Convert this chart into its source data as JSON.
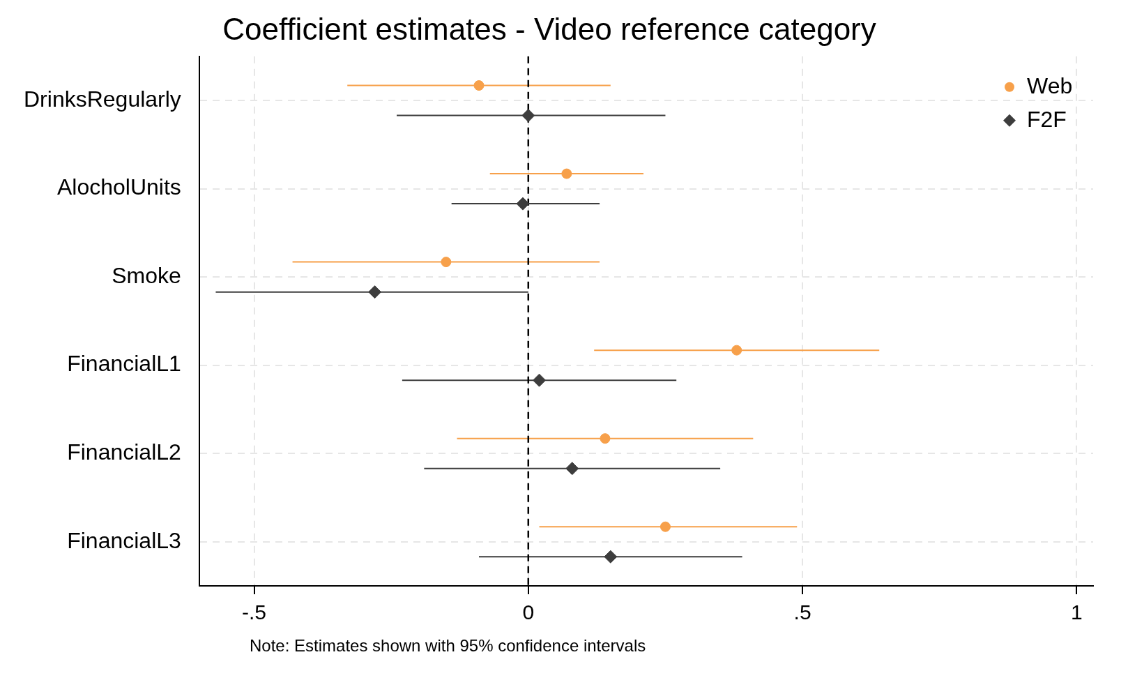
{
  "chart_data": {
    "type": "scatter",
    "orientation": "horizontal",
    "title": "Coefficient estimates - Video reference category",
    "categories": [
      "DrinksRegularly",
      "AlocholUnits",
      "Smoke",
      "FinancialL1",
      "FinancialL2",
      "FinancialL3"
    ],
    "series": [
      {
        "name": "Web",
        "color": "#f7a04a",
        "marker": "circle",
        "values": [
          -0.09,
          0.07,
          -0.15,
          0.38,
          0.14,
          0.25
        ],
        "errors": [
          [
            -0.33,
            0.15
          ],
          [
            -0.07,
            0.21
          ],
          [
            -0.43,
            0.13
          ],
          [
            0.12,
            0.64
          ],
          [
            -0.13,
            0.41
          ],
          [
            0.02,
            0.49
          ]
        ]
      },
      {
        "name": "F2F",
        "color": "#3d3d3d",
        "marker": "diamond",
        "values": [
          0.0,
          -0.01,
          -0.28,
          0.02,
          0.08,
          0.15
        ],
        "errors": [
          [
            -0.24,
            0.25
          ],
          [
            -0.14,
            0.13
          ],
          [
            -0.57,
            0.0
          ],
          [
            -0.23,
            0.27
          ],
          [
            -0.19,
            0.35
          ],
          [
            -0.09,
            0.39
          ]
        ]
      }
    ],
    "xlim": [
      -0.6,
      1.03
    ],
    "xticks": [
      {
        "value": -0.5,
        "label": "-.5"
      },
      0,
      {
        "value": 0.5,
        "label": ".5"
      },
      1
    ],
    "ref_lines": [
      {
        "axis": "x",
        "value": 0,
        "color": "#000000",
        "line_style": "dashed"
      }
    ],
    "grid": true,
    "legend": "top right",
    "annotations": [
      "Note: Estimates shown with 95% confidence intervals"
    ]
  }
}
